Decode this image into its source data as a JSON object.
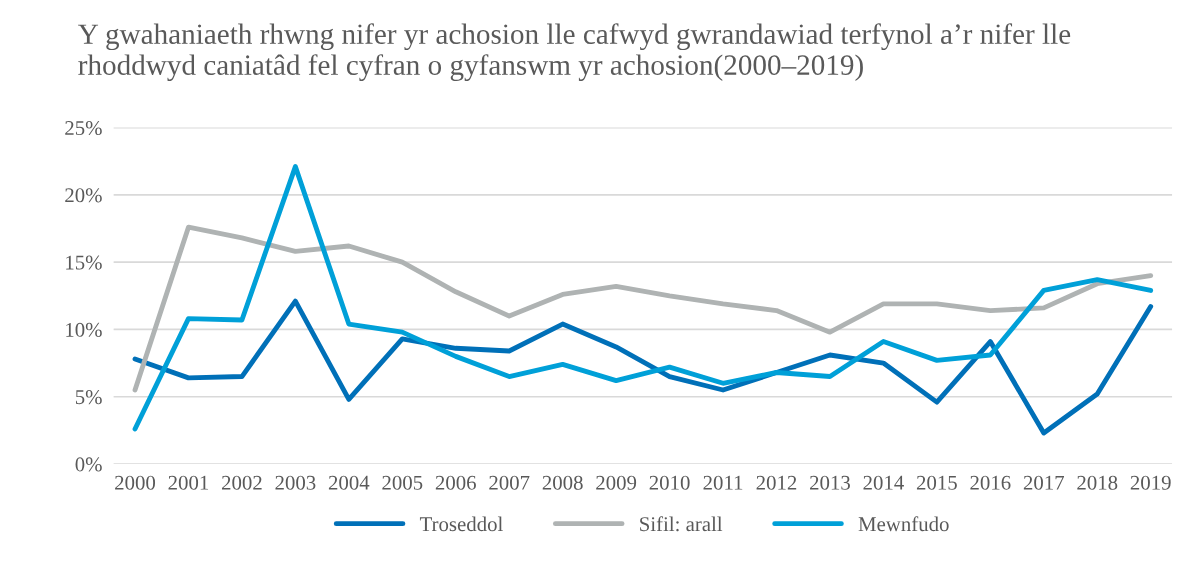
{
  "chart_data": {
    "type": "line",
    "title": "Y gwahaniaeth rhwng nifer yr achosion lle cafwyd gwrandawiad terfynol a’r nifer lle rhoddwyd caniatâd fel cyfran o gyfanswm yr achosion(2000–2019)",
    "categories": [
      "2000",
      "2001",
      "2002",
      "2003",
      "2004",
      "2005",
      "2006",
      "2007",
      "2008",
      "2009",
      "2010",
      "2011",
      "2012",
      "2013",
      "2014",
      "2015",
      "2016",
      "2017",
      "2018",
      "2019"
    ],
    "series": [
      {
        "name": "Troseddol",
        "color": "#0070b8",
        "values": [
          7.8,
          6.4,
          6.5,
          12.1,
          4.8,
          9.3,
          8.6,
          8.4,
          10.4,
          8.7,
          6.5,
          5.5,
          6.8,
          8.1,
          7.5,
          4.6,
          9.1,
          2.3,
          5.2,
          11.7
        ]
      },
      {
        "name": "Sifil: arall",
        "color": "#afb3b3",
        "values": [
          5.5,
          17.6,
          16.8,
          15.8,
          16.2,
          15.0,
          12.8,
          11.0,
          12.6,
          13.2,
          12.5,
          11.9,
          11.4,
          9.8,
          11.9,
          11.9,
          11.4,
          11.6,
          13.4,
          14.0
        ]
      },
      {
        "name": "Mewnfudo",
        "color": "#00a0d8",
        "values": [
          2.6,
          10.8,
          10.7,
          22.1,
          10.4,
          9.8,
          8.0,
          6.5,
          7.4,
          6.2,
          7.2,
          6.0,
          6.8,
          6.5,
          9.1,
          7.7,
          8.1,
          12.9,
          13.7,
          12.9
        ]
      }
    ],
    "ylim": [
      0,
      25
    ],
    "yticks": [
      {
        "value": 0,
        "label": "0%"
      },
      {
        "value": 5,
        "label": "5%"
      },
      {
        "value": 10,
        "label": "10%"
      },
      {
        "value": 15,
        "label": "15%"
      },
      {
        "value": 20,
        "label": "20%"
      },
      {
        "value": 25,
        "label": "25%"
      }
    ],
    "grid": "y",
    "legend": "bottom",
    "marker": "none",
    "line_style": "solid"
  }
}
